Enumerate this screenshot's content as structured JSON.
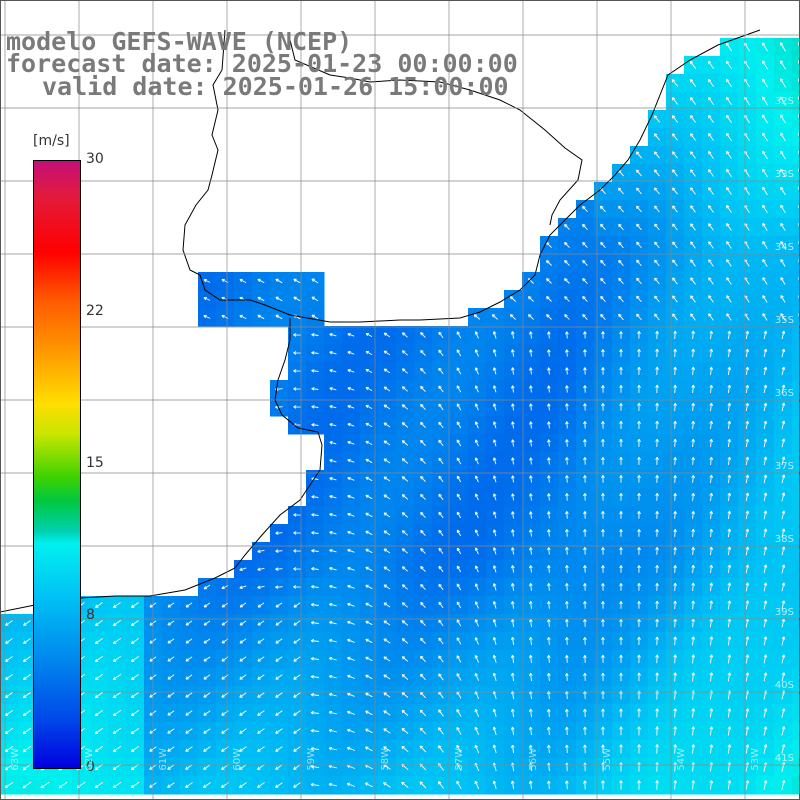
{
  "title": {
    "line1": "modelo GEFS-WAVE (NCEP)",
    "line2": "forecast date: 2025-01-23 00:00:00",
    "line3": "valid date: 2025-01-26 15:00:00"
  },
  "legend": {
    "unit": "[m/s]",
    "ticks": [
      "30",
      "22",
      "15",
      "8",
      "0"
    ],
    "tick_values": [
      30,
      22,
      15,
      8,
      0
    ]
  },
  "graticule": {
    "lat_labels": [
      "32S",
      "33S",
      "34S",
      "35S",
      "36S",
      "37S",
      "38S",
      "39S",
      "40S",
      "41S"
    ],
    "lon_labels": [
      "63W",
      "62W",
      "61W",
      "60W",
      "59W",
      "58W",
      "57W",
      "56W",
      "55W",
      "54W",
      "53W",
      "52W",
      "51W",
      "50W"
    ]
  },
  "colors": {
    "land": "#ffffff",
    "coastline": "#000000",
    "grid": "#888888",
    "arrow": "#ffffff"
  },
  "field": {
    "variable": "wind speed",
    "arrows": "wind direction",
    "dominant_wind": "south-easterly"
  }
}
